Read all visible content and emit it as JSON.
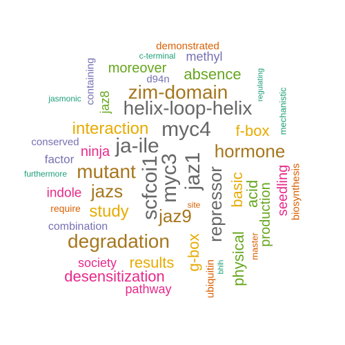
{
  "colors": {
    "teal": "#1b9e77",
    "orange": "#d95f02",
    "purple": "#7570b3",
    "magenta": "#e7298a",
    "green": "#66a61e",
    "gold": "#e6ab02",
    "brown": "#a6761d",
    "gray": "#666666"
  },
  "words": [
    {
      "text": "demonstrated",
      "color": "orange"
    },
    {
      "text": "c-terminal",
      "color": "teal"
    },
    {
      "text": "methyl",
      "color": "purple"
    },
    {
      "text": "moreover",
      "color": "green"
    },
    {
      "text": "d94n",
      "color": "purple"
    },
    {
      "text": "absence",
      "color": "green"
    },
    {
      "text": "containing",
      "color": "purple"
    },
    {
      "text": "jaz8",
      "color": "green"
    },
    {
      "text": "zim-domain",
      "color": "brown"
    },
    {
      "text": "jasmonic",
      "color": "teal"
    },
    {
      "text": "regulating",
      "color": "teal"
    },
    {
      "text": "mechanistic",
      "color": "teal"
    },
    {
      "text": "helix-loop-helix",
      "color": "gray"
    },
    {
      "text": "interaction",
      "color": "gold"
    },
    {
      "text": "myc4",
      "color": "gray"
    },
    {
      "text": "f-box",
      "color": "gold"
    },
    {
      "text": "conserved",
      "color": "purple"
    },
    {
      "text": "ja-ile",
      "color": "gray"
    },
    {
      "text": "ninja",
      "color": "magenta"
    },
    {
      "text": "hormone",
      "color": "brown"
    },
    {
      "text": "factor",
      "color": "purple"
    },
    {
      "text": "furthermore",
      "color": "teal"
    },
    {
      "text": "mutant",
      "color": "brown"
    },
    {
      "text": "indole",
      "color": "magenta"
    },
    {
      "text": "jazs",
      "color": "brown"
    },
    {
      "text": "require",
      "color": "orange"
    },
    {
      "text": "study",
      "color": "gold"
    },
    {
      "text": "combination",
      "color": "purple"
    },
    {
      "text": "degradation",
      "color": "brown"
    },
    {
      "text": "scfcoi1",
      "color": "gray"
    },
    {
      "text": "myc3",
      "color": "gray"
    },
    {
      "text": "jaz1",
      "color": "gray"
    },
    {
      "text": "jaz9",
      "color": "brown"
    },
    {
      "text": "site",
      "color": "orange"
    },
    {
      "text": "repressor",
      "color": "gray"
    },
    {
      "text": "basic",
      "color": "gold"
    },
    {
      "text": "acid",
      "color": "green"
    },
    {
      "text": "production",
      "color": "green"
    },
    {
      "text": "seedling",
      "color": "magenta"
    },
    {
      "text": "biosynthesis",
      "color": "orange"
    },
    {
      "text": "g-box",
      "color": "gold"
    },
    {
      "text": "ubiquitin",
      "color": "orange"
    },
    {
      "text": "bhlh",
      "color": "teal"
    },
    {
      "text": "physical",
      "color": "green"
    },
    {
      "text": "master",
      "color": "orange"
    },
    {
      "text": "society",
      "color": "magenta"
    },
    {
      "text": "results",
      "color": "gold"
    },
    {
      "text": "desensitization",
      "color": "magenta"
    },
    {
      "text": "pathway",
      "color": "magenta"
    }
  ]
}
